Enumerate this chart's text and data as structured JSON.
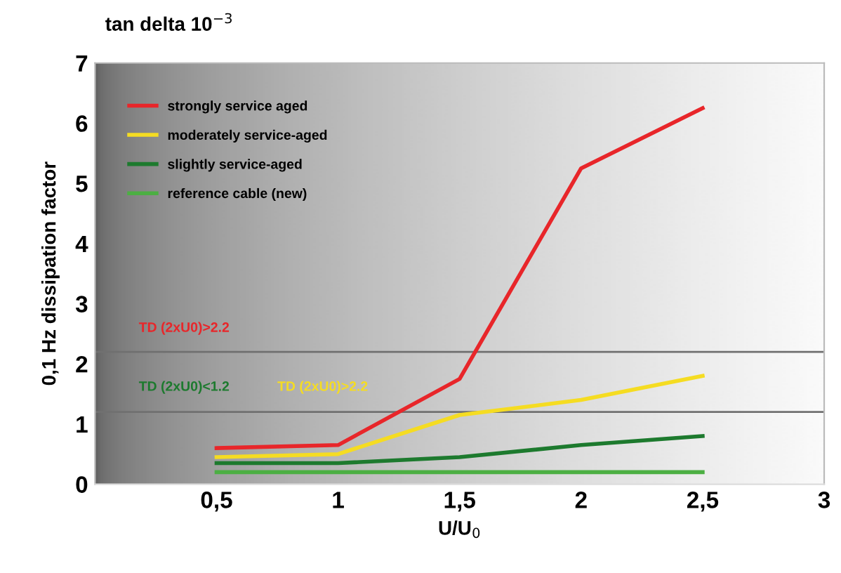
{
  "chart_data": {
    "type": "line",
    "title": "tan delta 10$^{−3}$",
    "xlabel": "U/U$_{0}$",
    "ylabel": "0,1 Hz dissipation factor",
    "x": [
      0.5,
      1,
      1.5,
      2,
      2.5
    ],
    "series": [
      {
        "name": "strongly service aged",
        "color": "#e8262a",
        "values": [
          0.6,
          0.65,
          1.75,
          5.25,
          6.25
        ]
      },
      {
        "name": "moderately service-aged",
        "color": "#f5dc22",
        "values": [
          0.45,
          0.5,
          1.15,
          1.4,
          1.8
        ]
      },
      {
        "name": "slightly service-aged",
        "color": "#1d7a2e",
        "values": [
          0.35,
          0.35,
          0.45,
          0.65,
          0.8
        ]
      },
      {
        "name": "reference cable (new)",
        "color": "#4caf43",
        "values": [
          0.2,
          0.2,
          0.2,
          0.2,
          0.2
        ]
      }
    ],
    "xlim": [
      0,
      3
    ],
    "xticks": [
      {
        "value": 0.5,
        "label": "0,5"
      },
      1,
      {
        "value": 1.5,
        "label": "1,5"
      },
      2,
      {
        "value": 2.5,
        "label": "2,5"
      },
      3
    ],
    "ylim": [
      0,
      7
    ],
    "yticks": [
      0,
      1,
      2,
      3,
      4,
      5,
      6,
      7
    ],
    "ref_lines": [
      {
        "axis": "y",
        "value": 2.2,
        "color": "#707070"
      },
      {
        "axis": "y",
        "value": 1.2,
        "color": "#707070"
      }
    ],
    "annotations": [
      "TD (2xU0)>2.2",
      "TD (2xU0)<1.2",
      "TD (2xU0)>2.2"
    ],
    "legend": "top left",
    "grid": false,
    "marker": "none",
    "line_style": "solid"
  }
}
